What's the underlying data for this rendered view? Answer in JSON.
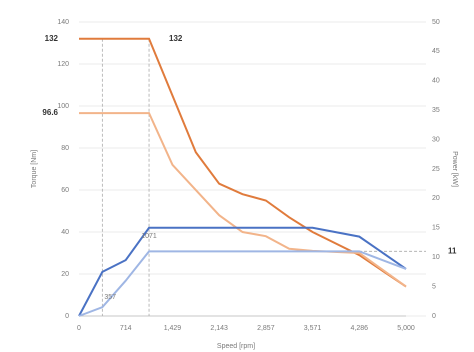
{
  "chart_data": {
    "type": "line",
    "xlabel": "Speed [rpm]",
    "ylabel": "Torque [Nm]",
    "y2label": "Power [kW]",
    "xlim": [
      0,
      5000
    ],
    "xticks": [
      0,
      {
        "value": 714,
        "label": "714"
      },
      {
        "value": 1429,
        "label": "1,429"
      },
      {
        "value": 2143,
        "label": "2,143"
      },
      {
        "value": 2857,
        "label": "2,857"
      },
      {
        "value": 3571,
        "label": "3,571"
      },
      {
        "value": 4286,
        "label": "4,286"
      },
      {
        "value": 5000,
        "label": "5,000"
      }
    ],
    "ylim": [
      0,
      140
    ],
    "yticks": [
      0,
      20,
      40,
      60,
      80,
      100,
      120,
      140
    ],
    "y2lim": [
      0,
      50
    ],
    "y2ticks": [
      0,
      5,
      10,
      15,
      20,
      25,
      30,
      35,
      40,
      45,
      50
    ],
    "grid": true,
    "series": [
      {
        "color": "#e07b3c",
        "x": [
          0,
          1071,
          1786,
          2143,
          2500,
          2857,
          3214,
          3571,
          4286,
          5000
        ],
        "values": [
          132,
          132,
          78,
          63,
          58,
          55,
          47,
          40,
          29,
          14
        ]
      },
      {
        "color": "#f2b48a",
        "x": [
          0,
          1071,
          1429,
          2143,
          2500,
          2857,
          3214,
          3571,
          4286,
          5000
        ],
        "values": [
          96.6,
          96.6,
          72,
          48,
          40,
          38,
          32,
          31,
          30,
          14
        ]
      },
      {
        "color": "#4a72c4",
        "axis": "y2",
        "x": [
          0,
          357,
          714,
          1071,
          2143,
          3571,
          4286,
          5000
        ],
        "values": [
          0,
          7.5,
          9.5,
          15,
          15,
          15,
          13.5,
          8
        ]
      },
      {
        "color": "#9fb6e4",
        "axis": "y2",
        "x": [
          0,
          357,
          714,
          1071,
          2143,
          3571,
          4286,
          5000
        ],
        "values": [
          0,
          1.5,
          6,
          11,
          11,
          11,
          11,
          8
        ]
      }
    ],
    "y_callouts": [
      132,
      96.6
    ],
    "y2_callouts": [
      11
    ],
    "x_callouts": [
      357,
      1071
    ],
    "peak_label": {
      "text": "132",
      "x": 1071,
      "y": 132
    }
  }
}
